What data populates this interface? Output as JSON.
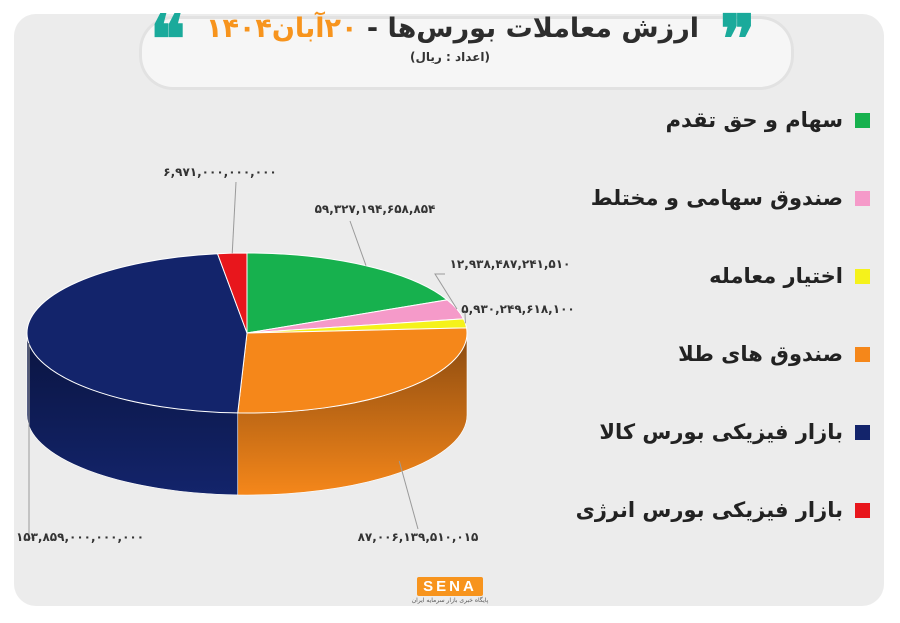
{
  "header": {
    "title_prefix": "ارزش معاملات بورس‌ها  -",
    "title_date": "۲۰آبان۱۴۰۴",
    "subtitle": "(اعداد : ریال)"
  },
  "logo": {
    "text": "SENA",
    "tagline": "پایگاه خبری بازار سرمایه ایران"
  },
  "chart_data": {
    "type": "pie",
    "title": "ارزش معاملات بورس‌ها  - ۲۰آبان۱۴۰۴",
    "unit_note": "(اعداد : ریال)",
    "legend_position": "right",
    "slices": [
      {
        "name": "سهام و حق تقدم",
        "value": 59327194658854,
        "label": "۵۹,۳۲۷,۱۹۴,۶۵۸,۸۵۴",
        "color": "#17b14e",
        "side_color": "#0f7d37"
      },
      {
        "name": "صندوق سهامی و مختلط",
        "value": 12938487241510,
        "label": "۱۲,۹۳۸,۴۸۷,۲۴۱,۵۱۰",
        "color": "#f59ac9",
        "side_color": "#b26a92"
      },
      {
        "name": "اختیار معامله",
        "value": 5930249618100,
        "label": "۵,۹۳۰,۲۴۹,۶۱۸,۱۰۰",
        "color": "#f5f21b",
        "side_color": "#b0ad10"
      },
      {
        "name": "صندوق های طلا",
        "value": 87006139510015,
        "label": "۸۷,۰۰۶,۱۳۹,۵۱۰,۰۱۵",
        "color": "#f5871a",
        "side_color": "#8a4a10"
      },
      {
        "name": "بازار فیزیکی بورس کالا",
        "value": 153859000000000,
        "label": "۱۵۳,۸۵۹,۰۰۰,۰۰۰,۰۰۰",
        "color": "#13246b",
        "side_color": "#0a1440"
      },
      {
        "name": "بازار فیزیکی بورس انرژی",
        "value": 6971000000000,
        "label": "۶,۹۷۱,۰۰۰,۰۰۰,۰۰۰",
        "color": "#e8161c",
        "side_color": "#8e0c10"
      }
    ]
  }
}
